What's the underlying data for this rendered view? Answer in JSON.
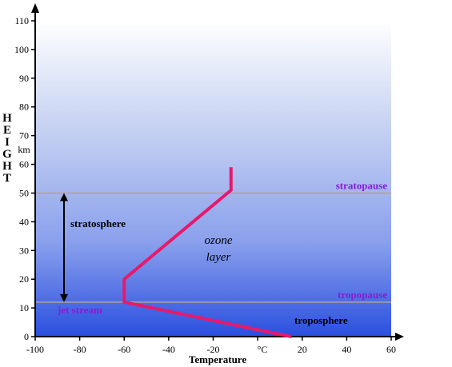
{
  "chart_data": {
    "type": "line",
    "title": "",
    "xlabel": "Temperature",
    "ylabel": "HEIGHT",
    "y_unit": "km",
    "x_unit_label": "°C",
    "xlim": [
      -100,
      60
    ],
    "ylim": [
      0,
      110
    ],
    "x_ticks": [
      -100,
      -80,
      -60,
      -40,
      -20,
      20,
      40,
      60
    ],
    "y_ticks": [
      0,
      10,
      20,
      30,
      40,
      50,
      60,
      70,
      80,
      90,
      100,
      110
    ],
    "series": [
      {
        "color": "#e8196a",
        "x": [
          15,
          -60,
          -60,
          -12,
          -12
        ],
        "y": [
          0,
          12,
          20,
          51,
          59
        ]
      }
    ],
    "reference_lines": [
      {
        "label": "stratopause",
        "y": 50
      },
      {
        "label": "tropopause",
        "y": 12
      }
    ],
    "annotations": {
      "stratosphere": "stratosphere",
      "troposphere": "troposphere",
      "jet_stream": "jet stream",
      "ozone_1": "ozone",
      "ozone_2": "layer"
    },
    "stratosphere_arrow": {
      "from": 12,
      "to": 50
    },
    "colors": {
      "reference_line": "#b4a48c",
      "region_label": "#8a1ad6",
      "curve": "#e8196a",
      "sky_top": "#ffffff",
      "sky_bottom": "#2a4fe0"
    }
  }
}
